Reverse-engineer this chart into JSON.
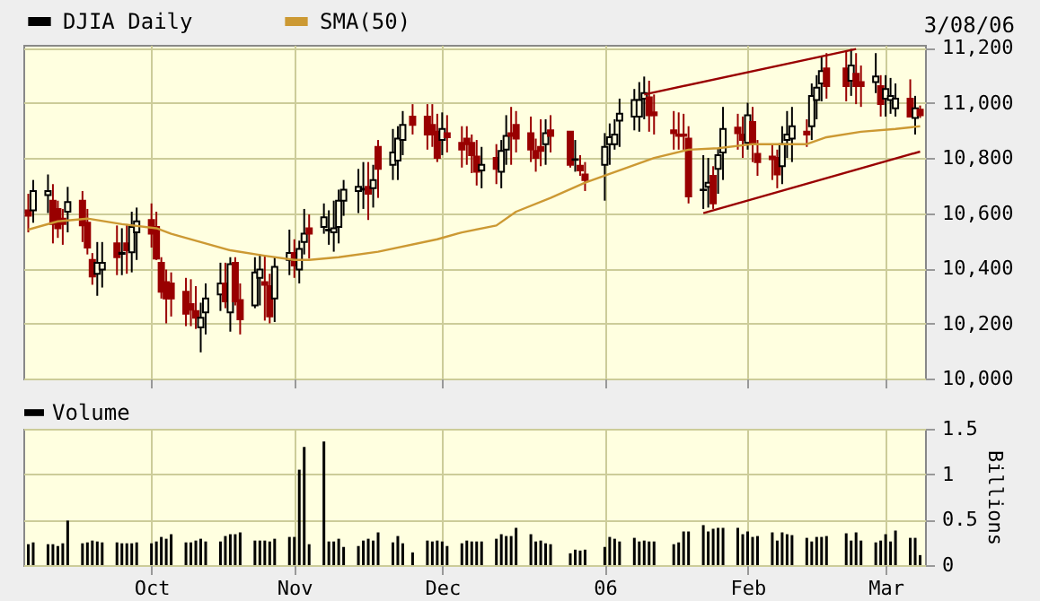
{
  "chart_data": [
    {
      "type": "candlestick",
      "annotations": [
        "3/08/06"
      ],
      "x": [
        "2005-09-08",
        "2005-09-09",
        "2005-09-12",
        "2005-09-13",
        "2005-09-14",
        "2005-09-15",
        "2005-09-16",
        "2005-09-19",
        "2005-09-20",
        "2005-09-21",
        "2005-09-22",
        "2005-09-23",
        "2005-09-26",
        "2005-09-27",
        "2005-09-28",
        "2005-09-29",
        "2005-09-30",
        "2005-10-03",
        "2005-10-04",
        "2005-10-05",
        "2005-10-06",
        "2005-10-07",
        "2005-10-10",
        "2005-10-11",
        "2005-10-12",
        "2005-10-13",
        "2005-10-14",
        "2005-10-17",
        "2005-10-18",
        "2005-10-19",
        "2005-10-20",
        "2005-10-21",
        "2005-10-24",
        "2005-10-25",
        "2005-10-26",
        "2005-10-27",
        "2005-10-28",
        "2005-10-31",
        "2005-11-01",
        "2005-11-02",
        "2005-11-03",
        "2005-11-04",
        "2005-11-07",
        "2005-11-08",
        "2005-11-09",
        "2005-11-10",
        "2005-11-11",
        "2005-11-14",
        "2005-11-15",
        "2005-11-16",
        "2005-11-17",
        "2005-11-18",
        "2005-11-21",
        "2005-11-22",
        "2005-11-23",
        "2005-11-25",
        "2005-11-28",
        "2005-11-29",
        "2005-11-30",
        "2005-12-01",
        "2005-12-02",
        "2005-12-05",
        "2005-12-06",
        "2005-12-07",
        "2005-12-08",
        "2005-12-09",
        "2005-12-12",
        "2005-12-13",
        "2005-12-14",
        "2005-12-15",
        "2005-12-16",
        "2005-12-19",
        "2005-12-20",
        "2005-12-21",
        "2005-12-22",
        "2005-12-23",
        "2005-12-27",
        "2005-12-28",
        "2005-12-29",
        "2005-12-30",
        "2006-01-03",
        "2006-01-04",
        "2006-01-05",
        "2006-01-06",
        "2006-01-09",
        "2006-01-10",
        "2006-01-11",
        "2006-01-12",
        "2006-01-13",
        "2006-01-17",
        "2006-01-18",
        "2006-01-19",
        "2006-01-20",
        "2006-01-23",
        "2006-01-24",
        "2006-01-25",
        "2006-01-26",
        "2006-01-27",
        "2006-01-30",
        "2006-01-31",
        "2006-02-01",
        "2006-02-02",
        "2006-02-03",
        "2006-02-06",
        "2006-02-07",
        "2006-02-08",
        "2006-02-09",
        "2006-02-10",
        "2006-02-13",
        "2006-02-14",
        "2006-02-15",
        "2006-02-16",
        "2006-02-17",
        "2006-02-21",
        "2006-02-22",
        "2006-02-23",
        "2006-02-24",
        "2006-02-27",
        "2006-02-28",
        "2006-03-01",
        "2006-03-02",
        "2006-03-03",
        "2006-03-06",
        "2006-03-07",
        "2006-03-08"
      ],
      "xlim": [
        "2005-09-07",
        "2006-03-09"
      ],
      "xticks": [
        {
          "value": "2005-10-03",
          "label": null
        },
        {
          "value": "2005-11-01",
          "label": null
        },
        {
          "value": "2005-12-01",
          "label": null
        },
        {
          "value": "2006-01-03",
          "label": null
        },
        {
          "value": "2006-02-01",
          "label": null
        },
        {
          "value": "2006-03-01",
          "label": null
        }
      ],
      "ylim": [
        10000,
        11210
      ],
      "yticks": [
        {
          "value": 10000,
          "label": "10,000"
        },
        {
          "value": 10200,
          "label": "10,200"
        },
        {
          "value": 10400,
          "label": "10,400"
        },
        {
          "value": 10600,
          "label": "10,600"
        },
        {
          "value": 10800,
          "label": "10,800"
        },
        {
          "value": 11000,
          "label": "11,000"
        },
        {
          "value": 11200,
          "label": "11,200"
        }
      ],
      "grid": true,
      "legend": "top left",
      "tick_labels": "y",
      "series": [
        {
          "name": "DJIA Daily",
          "type": "candlestick",
          "color": "#000000",
          "ohlc": [
            [
              10610,
              10670,
              10530,
              10590
            ],
            [
              10610,
              10720,
              10565,
              10680
            ],
            [
              10665,
              10740,
              10600,
              10680
            ],
            [
              10645,
              10705,
              10490,
              10560
            ],
            [
              10615,
              10645,
              10510,
              10545
            ],
            [
              10580,
              10615,
              10485,
              10560
            ],
            [
              10605,
              10695,
              10530,
              10640
            ],
            [
              10645,
              10680,
              10495,
              10555
            ],
            [
              10565,
              10615,
              10450,
              10475
            ],
            [
              10430,
              10455,
              10340,
              10370
            ],
            [
              10380,
              10495,
              10300,
              10420
            ],
            [
              10395,
              10495,
              10330,
              10420
            ],
            [
              10490,
              10555,
              10375,
              10440
            ],
            [
              10452,
              10545,
              10375,
              10456
            ],
            [
              10490,
              10560,
              10380,
              10465
            ],
            [
              10458,
              10605,
              10385,
              10550
            ],
            [
              10530,
              10620,
              10430,
              10570
            ],
            [
              10575,
              10635,
              10475,
              10525
            ],
            [
              10550,
              10605,
              10430,
              10435
            ],
            [
              10420,
              10440,
              10290,
              10315
            ],
            [
              10350,
              10395,
              10200,
              10290
            ],
            [
              10345,
              10385,
              10225,
              10290
            ],
            [
              10315,
              10365,
              10190,
              10235
            ],
            [
              10270,
              10360,
              10190,
              10250
            ],
            [
              10245,
              10335,
              10180,
              10220
            ],
            [
              10185,
              10275,
              10095,
              10220
            ],
            [
              10240,
              10345,
              10160,
              10290
            ],
            [
              10305,
              10420,
              10245,
              10345
            ],
            [
              10345,
              10420,
              10255,
              10280
            ],
            [
              10240,
              10440,
              10170,
              10415
            ],
            [
              10420,
              10440,
              10265,
              10280
            ],
            [
              10285,
              10345,
              10160,
              10215
            ],
            [
              10265,
              10440,
              10255,
              10385
            ],
            [
              10365,
              10450,
              10265,
              10395
            ],
            [
              10350,
              10445,
              10210,
              10340
            ],
            [
              10335,
              10380,
              10200,
              10225
            ],
            [
              10290,
              10440,
              10205,
              10405
            ],
            [
              10430,
              10540,
              10375,
              10455
            ],
            [
              10455,
              10505,
              10365,
              10410
            ],
            [
              10395,
              10500,
              10345,
              10470
            ],
            [
              10495,
              10615,
              10450,
              10525
            ],
            [
              10545,
              10595,
              10435,
              10525
            ],
            [
              10550,
              10635,
              10525,
              10585
            ],
            [
              10537,
              10610,
              10485,
              10540
            ],
            [
              10530,
              10645,
              10460,
              10545
            ],
            [
              10550,
              10685,
              10490,
              10645
            ],
            [
              10645,
              10720,
              10590,
              10685
            ],
            [
              10680,
              10760,
              10600,
              10695
            ],
            [
              10685,
              10785,
              10615,
              10688
            ],
            [
              10695,
              10785,
              10575,
              10670
            ],
            [
              10690,
              10775,
              10620,
              10720
            ],
            [
              10840,
              10865,
              10655,
              10760
            ],
            [
              10775,
              10905,
              10720,
              10820
            ],
            [
              10790,
              10915,
              10720,
              10870
            ],
            [
              10865,
              10970,
              10810,
              10920
            ],
            [
              10950,
              10995,
              10885,
              10920
            ],
            [
              10950,
              10995,
              10830,
              10885
            ],
            [
              10920,
              10995,
              10840,
              10885
            ],
            [
              10895,
              10960,
              10785,
              10800
            ],
            [
              10865,
              10965,
              10810,
              10905
            ],
            [
              10890,
              10955,
              10820,
              10875
            ],
            [
              10855,
              10915,
              10765,
              10830
            ],
            [
              10870,
              10915,
              10775,
              10850
            ],
            [
              10855,
              10885,
              10745,
              10810
            ],
            [
              10805,
              10865,
              10700,
              10750
            ],
            [
              10755,
              10840,
              10690,
              10775
            ],
            [
              10800,
              10850,
              10705,
              10760
            ],
            [
              10750,
              10865,
              10690,
              10825
            ],
            [
              10830,
              10955,
              10775,
              10880
            ],
            [
              10890,
              10985,
              10775,
              10880
            ],
            [
              10920,
              10970,
              10820,
              10870
            ],
            [
              10890,
              10950,
              10785,
              10830
            ],
            [
              10825,
              10870,
              10750,
              10800
            ],
            [
              10840,
              10940,
              10770,
              10825
            ],
            [
              10850,
              10940,
              10775,
              10890
            ],
            [
              10900,
              10955,
              10820,
              10880
            ],
            [
              10895,
              10895,
              10765,
              10775
            ],
            [
              10793,
              10865,
              10750,
              10795
            ],
            [
              10772,
              10810,
              10735,
              10755
            ],
            [
              10740,
              10785,
              10680,
              10720
            ],
            [
              10775,
              10890,
              10645,
              10840
            ],
            [
              10850,
              10925,
              10775,
              10875
            ],
            [
              10850,
              10940,
              10830,
              10885
            ],
            [
              10935,
              11015,
              10840,
              10960
            ],
            [
              10950,
              11050,
              10900,
              11010
            ],
            [
              10950,
              11075,
              10895,
              11010
            ],
            [
              11015,
              11095,
              10940,
              11035
            ],
            [
              11020,
              11080,
              10895,
              10955
            ],
            [
              10965,
              11030,
              10885,
              10955
            ],
            [
              10900,
              10970,
              10830,
              10890
            ],
            [
              10885,
              10965,
              10830,
              10880
            ],
            [
              10885,
              10960,
              10830,
              10880
            ],
            [
              10870,
              10915,
              10635,
              10660
            ],
            [
              10683,
              10810,
              10615,
              10685
            ],
            [
              10695,
              10800,
              10620,
              10710
            ],
            [
              10735,
              10770,
              10615,
              10635
            ],
            [
              10760,
              10835,
              10670,
              10810
            ],
            [
              10820,
              10985,
              10720,
              10905
            ],
            [
              10910,
              10960,
              10830,
              10890
            ],
            [
              10885,
              10950,
              10800,
              10865
            ],
            [
              10855,
              11000,
              10830,
              10955
            ],
            [
              10930,
              10985,
              10785,
              10850
            ],
            [
              10815,
              10865,
              10735,
              10785
            ],
            [
              10805,
              10850,
              10720,
              10795
            ],
            [
              10800,
              10830,
              10690,
              10740
            ],
            [
              10770,
              10915,
              10705,
              10850
            ],
            [
              10865,
              10970,
              10800,
              10885
            ],
            [
              10870,
              10985,
              10785,
              10915
            ],
            [
              10895,
              10940,
              10840,
              10885
            ],
            [
              10915,
              11070,
              10865,
              11025
            ],
            [
              11010,
              11100,
              10940,
              11055
            ],
            [
              11070,
              11165,
              11005,
              11115
            ],
            [
              11125,
              11180,
              11015,
              11060
            ],
            [
              11125,
              11190,
              11005,
              11060
            ],
            [
              11080,
              11195,
              11025,
              11135
            ],
            [
              11105,
              11180,
              10995,
              11060
            ],
            [
              11075,
              11135,
              10985,
              11060
            ],
            [
              11075,
              11180,
              11035,
              11095
            ],
            [
              11060,
              11100,
              10950,
              10995
            ],
            [
              11015,
              11100,
              10950,
              11050
            ],
            [
              11010,
              11090,
              10960,
              11025
            ],
            [
              10980,
              11070,
              10950,
              11015
            ],
            [
              11015,
              11085,
              10950,
              10950
            ],
            [
              10945,
              11025,
              10885,
              10980
            ],
            [
              10975,
              10990,
              10945,
              10955
            ]
          ],
          "colors": [
            "#990000",
            "#000000",
            "#000000",
            "#990000",
            "#990000",
            "#990000",
            "#000000",
            "#990000",
            "#990000",
            "#990000",
            "#000000",
            "#000000",
            "#990000",
            "#000000",
            "#990000",
            "#000000",
            "#000000",
            "#990000",
            "#990000",
            "#990000",
            "#990000",
            "#990000",
            "#990000",
            "#990000",
            "#990000",
            "#000000",
            "#000000",
            "#000000",
            "#990000",
            "#000000",
            "#990000",
            "#990000",
            "#000000",
            "#000000",
            "#990000",
            "#990000",
            "#000000",
            "#000000",
            "#990000",
            "#000000",
            "#000000",
            "#990000",
            "#000000",
            "#000000",
            "#000000",
            "#000000",
            "#000000",
            "#000000",
            "#000000",
            "#990000",
            "#000000",
            "#990000",
            "#000000",
            "#000000",
            "#000000",
            "#990000",
            "#990000",
            "#990000",
            "#990000",
            "#000000",
            "#990000",
            "#990000",
            "#990000",
            "#990000",
            "#990000",
            "#000000",
            "#990000",
            "#000000",
            "#000000",
            "#990000",
            "#990000",
            "#990000",
            "#990000",
            "#990000",
            "#000000",
            "#990000",
            "#990000",
            "#000000",
            "#990000",
            "#990000",
            "#000000",
            "#000000",
            "#000000",
            "#000000",
            "#000000",
            "#000000",
            "#000000",
            "#990000",
            "#990000",
            "#990000",
            "#990000",
            "#990000",
            "#990000",
            "#000000",
            "#000000",
            "#990000",
            "#000000",
            "#000000",
            "#990000",
            "#990000",
            "#000000",
            "#990000",
            "#990000",
            "#990000",
            "#990000",
            "#000000",
            "#000000",
            "#000000",
            "#990000",
            "#000000",
            "#000000",
            "#000000",
            "#990000",
            "#990000",
            "#000000",
            "#990000",
            "#990000",
            "#000000",
            "#990000",
            "#000000",
            "#000000",
            "#000000",
            "#990000",
            "#000000",
            "#990000"
          ]
        },
        {
          "name": "SMA(50)",
          "type": "line",
          "color": "#cc9933",
          "x": [
            "2005-09-08",
            "2005-09-14",
            "2005-09-20",
            "2005-09-27",
            "2005-10-04",
            "2005-10-07",
            "2005-10-13",
            "2005-10-19",
            "2005-10-26",
            "2005-11-01",
            "2005-11-04",
            "2005-11-10",
            "2005-11-18",
            "2005-11-30",
            "2005-12-05",
            "2005-12-12",
            "2005-12-16",
            "2005-12-23",
            "2005-12-30",
            "2006-01-06",
            "2006-01-13",
            "2006-01-20",
            "2006-01-26",
            "2006-02-02",
            "2006-02-13",
            "2006-02-17",
            "2006-02-24",
            "2006-03-03",
            "2006-03-08"
          ],
          "values": [
            10540,
            10570,
            10580,
            10560,
            10545,
            10525,
            10495,
            10465,
            10445,
            10430,
            10430,
            10440,
            10460,
            10505,
            10530,
            10555,
            10605,
            10655,
            10710,
            10755,
            10800,
            10830,
            10835,
            10850,
            10850,
            10875,
            10895,
            10905,
            10915
          ]
        },
        {
          "type": "line",
          "color": "#990000",
          "x": [
            "2006-01-11",
            "2006-02-23"
          ],
          "values": [
            11030,
            11195
          ]
        },
        {
          "type": "line",
          "color": "#990000",
          "x": [
            "2006-01-23",
            "2006-03-08"
          ],
          "values": [
            10600,
            10823
          ]
        }
      ]
    },
    {
      "type": "bar",
      "ylabel": "Billions",
      "grid": true,
      "legend": "top left",
      "x": [
        "2005-09-08",
        "2005-09-09",
        "2005-09-12",
        "2005-09-13",
        "2005-09-14",
        "2005-09-15",
        "2005-09-16",
        "2005-09-19",
        "2005-09-20",
        "2005-09-21",
        "2005-09-22",
        "2005-09-23",
        "2005-09-26",
        "2005-09-27",
        "2005-09-28",
        "2005-09-29",
        "2005-09-30",
        "2005-10-03",
        "2005-10-04",
        "2005-10-05",
        "2005-10-06",
        "2005-10-07",
        "2005-10-10",
        "2005-10-11",
        "2005-10-12",
        "2005-10-13",
        "2005-10-14",
        "2005-10-17",
        "2005-10-18",
        "2005-10-19",
        "2005-10-20",
        "2005-10-21",
        "2005-10-24",
        "2005-10-25",
        "2005-10-26",
        "2005-10-27",
        "2005-10-28",
        "2005-10-31",
        "2005-11-01",
        "2005-11-02",
        "2005-11-03",
        "2005-11-04",
        "2005-11-07",
        "2005-11-08",
        "2005-11-09",
        "2005-11-10",
        "2005-11-11",
        "2005-11-14",
        "2005-11-15",
        "2005-11-16",
        "2005-11-17",
        "2005-11-18",
        "2005-11-21",
        "2005-11-22",
        "2005-11-23",
        "2005-11-25",
        "2005-11-28",
        "2005-11-29",
        "2005-11-30",
        "2005-12-01",
        "2005-12-02",
        "2005-12-05",
        "2005-12-06",
        "2005-12-07",
        "2005-12-08",
        "2005-12-09",
        "2005-12-12",
        "2005-12-13",
        "2005-12-14",
        "2005-12-15",
        "2005-12-16",
        "2005-12-19",
        "2005-12-20",
        "2005-12-21",
        "2005-12-22",
        "2005-12-23",
        "2005-12-27",
        "2005-12-28",
        "2005-12-29",
        "2005-12-30",
        "2006-01-03",
        "2006-01-04",
        "2006-01-05",
        "2006-01-06",
        "2006-01-09",
        "2006-01-10",
        "2006-01-11",
        "2006-01-12",
        "2006-01-13",
        "2006-01-17",
        "2006-01-18",
        "2006-01-19",
        "2006-01-20",
        "2006-01-23",
        "2006-01-24",
        "2006-01-25",
        "2006-01-26",
        "2006-01-27",
        "2006-01-30",
        "2006-01-31",
        "2006-02-01",
        "2006-02-02",
        "2006-02-03",
        "2006-02-06",
        "2006-02-07",
        "2006-02-08",
        "2006-02-09",
        "2006-02-10",
        "2006-02-13",
        "2006-02-14",
        "2006-02-15",
        "2006-02-16",
        "2006-02-17",
        "2006-02-21",
        "2006-02-22",
        "2006-02-23",
        "2006-02-24",
        "2006-02-27",
        "2006-02-28",
        "2006-03-01",
        "2006-03-02",
        "2006-03-03",
        "2006-03-06",
        "2006-03-07",
        "2006-03-08"
      ],
      "xlim": [
        "2005-09-07",
        "2006-03-09"
      ],
      "xticks": [
        {
          "value": "2005-10-03",
          "label": "Oct"
        },
        {
          "value": "2005-11-01",
          "label": "Nov"
        },
        {
          "value": "2005-12-01",
          "label": "Dec"
        },
        {
          "value": "2006-01-03",
          "label": "06"
        },
        {
          "value": "2006-02-01",
          "label": "Feb"
        },
        {
          "value": "2006-03-01",
          "label": "Mar"
        }
      ],
      "ylim": [
        0,
        1.5
      ],
      "yticks": [
        0,
        0.5,
        1,
        1.5
      ],
      "series": [
        {
          "name": "Volume",
          "color": "#000000",
          "values": [
            0.23,
            0.25,
            0.23,
            0.23,
            0.21,
            0.24,
            0.49,
            0.24,
            0.25,
            0.27,
            0.26,
            0.25,
            0.25,
            0.24,
            0.24,
            0.24,
            0.25,
            0.24,
            0.26,
            0.31,
            0.29,
            0.34,
            0.25,
            0.25,
            0.27,
            0.29,
            0.26,
            0.26,
            0.32,
            0.34,
            0.34,
            0.36,
            0.27,
            0.27,
            0.27,
            0.26,
            0.29,
            0.31,
            0.31,
            1.05,
            1.3,
            0.23,
            1.36,
            0.26,
            0.26,
            0.29,
            0.2,
            0.21,
            0.27,
            0.29,
            0.27,
            0.36,
            0.25,
            0.32,
            0.24,
            0.14,
            0.27,
            0.26,
            0.27,
            0.26,
            0.21,
            0.24,
            0.27,
            0.26,
            0.26,
            0.26,
            0.29,
            0.34,
            0.32,
            0.32,
            0.41,
            0.34,
            0.26,
            0.27,
            0.24,
            0.23,
            0.13,
            0.17,
            0.16,
            0.17,
            0.2,
            0.31,
            0.29,
            0.26,
            0.3,
            0.26,
            0.27,
            0.26,
            0.26,
            0.23,
            0.25,
            0.37,
            0.37,
            0.44,
            0.37,
            0.4,
            0.41,
            0.41,
            0.41,
            0.34,
            0.37,
            0.31,
            0.32,
            0.36,
            0.27,
            0.36,
            0.34,
            0.33,
            0.3,
            0.26,
            0.31,
            0.31,
            0.32,
            0.35,
            0.27,
            0.36,
            0.27,
            0.25,
            0.27,
            0.34,
            0.26,
            0.38,
            0.3,
            0.3,
            0.11
          ]
        }
      ]
    }
  ]
}
